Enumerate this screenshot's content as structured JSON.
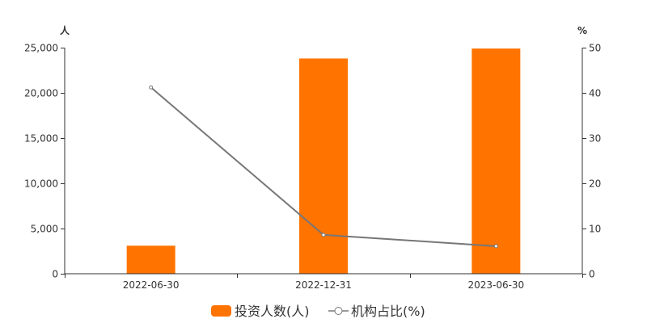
{
  "chart_data": {
    "type": "bar",
    "categories": [
      "2022-06-30",
      "2022-12-31",
      "2023-06-30"
    ],
    "series": [
      {
        "name": "投资人数(人)",
        "type": "bar",
        "axis": "left",
        "values": [
          3100,
          23800,
          24900
        ],
        "color": "#ff7300"
      },
      {
        "name": "机构占比(%)",
        "type": "line",
        "axis": "right",
        "values": [
          41.2,
          8.6,
          6.1
        ],
        "color": "#777777"
      }
    ],
    "y_left": {
      "unit": "人",
      "range": [
        0,
        25000
      ],
      "ticks": [
        0,
        5000,
        10000,
        15000,
        20000,
        25000
      ],
      "tick_labels": [
        "0",
        "5,000",
        "10,000",
        "15,000",
        "20,000",
        "25,000"
      ]
    },
    "y_right": {
      "unit": "%",
      "range": [
        0,
        50
      ],
      "ticks": [
        0,
        10,
        20,
        30,
        40,
        50
      ],
      "tick_labels": [
        "0",
        "10",
        "20",
        "30",
        "40",
        "50"
      ]
    },
    "grid": false,
    "legend": "bottom-center"
  }
}
